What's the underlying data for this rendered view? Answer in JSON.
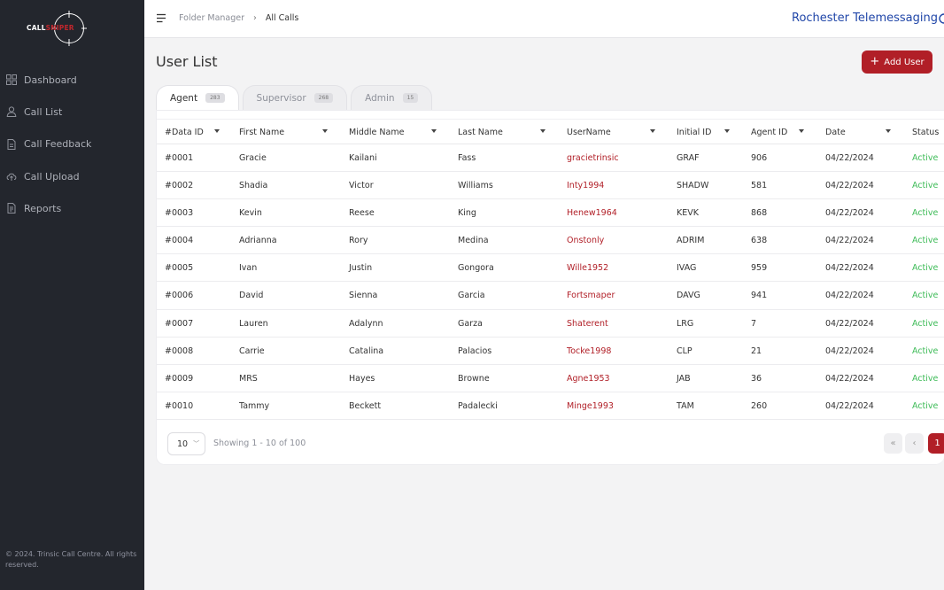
{
  "brand": {
    "logo_word_1": "CALL",
    "logo_word_2": "SNIPER"
  },
  "sidebar": {
    "items": [
      {
        "label": "Dashboard",
        "icon": "dashboard-grid-icon"
      },
      {
        "label": "Call List",
        "icon": "user-icon"
      },
      {
        "label": "Call Feedback",
        "icon": "document-icon"
      },
      {
        "label": "Call Upload",
        "icon": "cloud-upload-icon"
      },
      {
        "label": "Reports",
        "icon": "report-document-icon"
      }
    ],
    "footer": "© 2024. Trinsic Call Centre. All rights reserved."
  },
  "header": {
    "breadcrumb": [
      "Folder Manager",
      "All Calls"
    ],
    "company": "Rochester Telemessaging"
  },
  "main": {
    "title": "User List",
    "add_button": "Add User",
    "tabs": [
      {
        "label": "Agent",
        "count": "283"
      },
      {
        "label": "Supervisor",
        "count": "268"
      },
      {
        "label": "Admin",
        "count": "15"
      }
    ],
    "columns": [
      "#Data ID",
      "First Name",
      "Middle Name",
      "Last Name",
      "UserName",
      "Initial ID",
      "Agent ID",
      "Date",
      "Status"
    ],
    "rows": [
      [
        "#0001",
        "Gracie",
        "Kailani",
        "Fass",
        "gracietrinsic",
        "GRAF",
        "906",
        "04/22/2024",
        "Active"
      ],
      [
        "#0002",
        "Shadia",
        "Victor",
        "Williams",
        "Inty1994",
        "SHADW",
        "581",
        "04/22/2024",
        "Active"
      ],
      [
        "#0003",
        "Kevin",
        "Reese",
        "King",
        "Henew1964",
        "KEVK",
        "868",
        "04/22/2024",
        "Active"
      ],
      [
        "#0004",
        "Adrianna",
        "Rory",
        "Medina",
        "Onstonly",
        "ADRIM",
        "638",
        "04/22/2024",
        "Active"
      ],
      [
        "#0005",
        "Ivan",
        "Justin",
        "Gongora",
        "Wille1952",
        "IVAG",
        "959",
        "04/22/2024",
        "Active"
      ],
      [
        "#0006",
        "David",
        "Sienna",
        "Garcia",
        "Fortsmaper",
        "DAVG",
        "941",
        "04/22/2024",
        "Active"
      ],
      [
        "#0007",
        "Lauren",
        "Adalynn",
        "Garza",
        "Shaterent",
        "LRG",
        "7",
        "04/22/2024",
        "Active"
      ],
      [
        "#0008",
        "Carrie",
        "Catalina",
        "Palacios",
        "Tocke1998",
        "CLP",
        "21",
        "04/22/2024",
        "Active"
      ],
      [
        "#0009",
        "MRS",
        "Hayes",
        "Browne",
        "Agne1953",
        "JAB",
        "36",
        "04/22/2024",
        "Active"
      ],
      [
        "#0010",
        "Tammy",
        "Beckett",
        "Padalecki",
        "Minge1993",
        "TAM",
        "260",
        "04/22/2024",
        "Active"
      ]
    ],
    "pagination": {
      "page_size": "10",
      "showing": "Showing 1 - 10 of 100",
      "first_label": "«",
      "prev_label": "‹",
      "current_page": "1"
    }
  },
  "colors": {
    "sidebar_bg": "#23262d",
    "accent_red": "#b11f27",
    "company_blue": "#2046a8",
    "status_green": "#3dbb57"
  }
}
